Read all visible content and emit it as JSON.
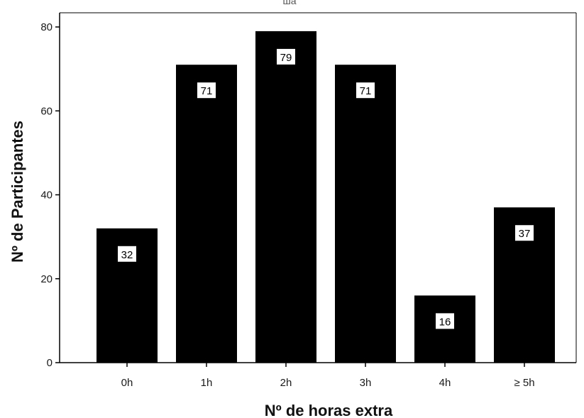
{
  "chart_data": {
    "type": "bar",
    "title": "",
    "xlabel": "Nº de horas extra",
    "ylabel": "Nº de Participantes",
    "categories": [
      "0h",
      "1h",
      "2h",
      "3h",
      "4h",
      "≥ 5h"
    ],
    "values": [
      32,
      71,
      79,
      71,
      16,
      37
    ],
    "data_labels": [
      "32",
      "71",
      "79",
      "71",
      "16",
      "37"
    ],
    "ylim": [
      0,
      80
    ],
    "yticks": [
      0,
      20,
      40,
      60,
      80
    ],
    "grid": false,
    "legend": "none",
    "colors": {
      "bar": "#000000",
      "label_box": "#ffffff",
      "axis": "#000000"
    }
  }
}
